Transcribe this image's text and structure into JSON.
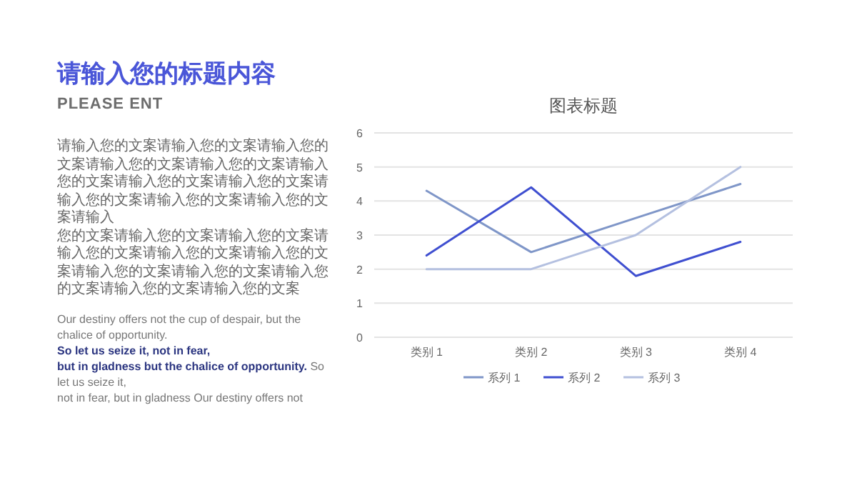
{
  "chart_data": {
    "type": "line",
    "title": "图表标题",
    "categories": [
      "类别 1",
      "类别 2",
      "类别 3",
      "类别 4"
    ],
    "series": [
      {
        "name": "系列 1",
        "color": "#7f96c8",
        "values": [
          4.3,
          2.5,
          3.5,
          4.5
        ]
      },
      {
        "name": "系列 2",
        "color": "#3f4fd0",
        "values": [
          2.4,
          4.4,
          1.8,
          2.8
        ]
      },
      {
        "name": "系列 3",
        "color": "#b4c0e0",
        "values": [
          2,
          2,
          3,
          5
        ]
      }
    ],
    "ylim": [
      0,
      6
    ],
    "yticks": [
      0,
      1,
      2,
      3,
      4,
      5,
      6
    ],
    "grid": "y",
    "legend": "bottom",
    "marker": "none",
    "annotations": [
      "请输入您的标题内容",
      "PLEASE ENT",
      "请输入您的文案请输入您的文案请输入您的文案请输入您的文案请输入您的文案请输入您的文案请输入您的文案请输入您的文案请输入您的文案请输入您的文案请输入您的文案请输入",
      "您的文案请输入您的文案请输入您的文案请输入您的文案请输入您的文案请输入您的文案请输入您的文案请输入您的文案请输入您的文案请输入您的文案请输入您的文案",
      "Our destiny offers not the cup of despair, but the chalice of opportunity.",
      "So let us seize it, not in fear,",
      "but in gladness but the chalice of opportunity.",
      " So let us seize it,",
      " not in fear, but in gladness Our destiny offers not"
    ]
  }
}
